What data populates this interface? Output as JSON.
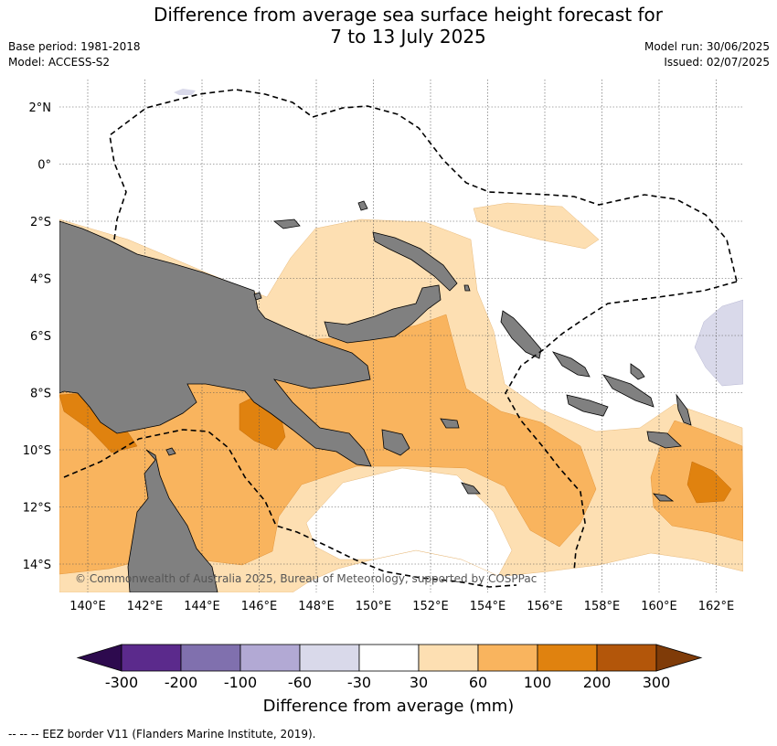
{
  "title_line1": "Difference from average sea surface height forecast for",
  "title_line2": "7 to 13 July 2025",
  "base_period": "Base period: 1981-2018",
  "model": "Model: ACCESS-S2",
  "model_run": "Model run: 30/06/2025",
  "issued": "Issued: 02/07/2025",
  "copyright": "© Commonwealth of Australia 2025, Bureau of Meteorology, supported by COSPPac",
  "footnote": "-- -- -- EEZ border V11 (Flanders Marine Institute, 2019).",
  "colorbar": {
    "label": "Difference from average (mm)",
    "ticks": [
      "-300",
      "-200",
      "-100",
      "-60",
      "-30",
      "30",
      "60",
      "100",
      "200",
      "300"
    ],
    "colors": [
      "#5b2a8c",
      "#8070ae",
      "#b2a9d4",
      "#d9d9ea",
      "#ffffff",
      "#fddfb2",
      "#f9b45e",
      "#e0820f",
      "#b3560a"
    ],
    "under_color": "#2d0a4e",
    "over_color": "#7f3b08"
  },
  "map": {
    "lat_labels": [
      "2°N",
      "0°",
      "2°S",
      "4°S",
      "6°S",
      "8°S",
      "10°S",
      "12°S",
      "14°S"
    ],
    "lon_labels": [
      "140°E",
      "142°E",
      "144°E",
      "146°E",
      "148°E",
      "150°E",
      "152°E",
      "154°E",
      "156°E",
      "158°E",
      "160°E",
      "162°E"
    ],
    "land_color": "#808080",
    "colors": {
      "light_orange": "#fddfb2",
      "mid_orange": "#f9b45e",
      "dark_orange": "#e0820f",
      "light_purple": "#d9d9ea"
    }
  }
}
